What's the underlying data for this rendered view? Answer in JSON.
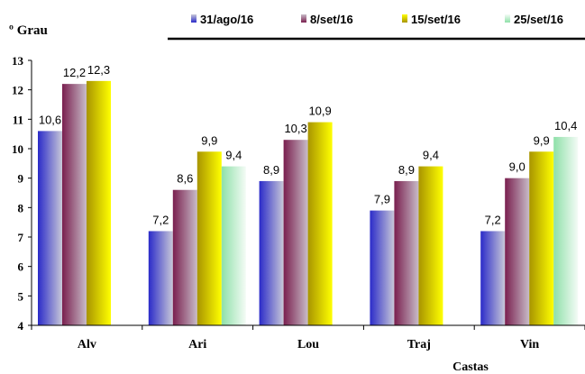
{
  "chart_data": {
    "type": "bar",
    "ylabel": "º Grau",
    "xlabel": "Castas",
    "ylim": [
      4,
      13
    ],
    "yticks": [
      4,
      5,
      6,
      7,
      8,
      9,
      10,
      11,
      12,
      13
    ],
    "categories": [
      "Alv",
      "Ari",
      "Lou",
      "Traj",
      "Vin"
    ],
    "legend_position": "top-right",
    "grid": false,
    "series": [
      {
        "name": "31/ago/16",
        "color_dark": "#2b2bc9",
        "color_light": "#c8c8d8",
        "values": [
          10.6,
          7.2,
          8.9,
          7.9,
          7.2
        ],
        "labels": [
          "10,6",
          "7,2",
          "8,9",
          "7,9",
          "7,2"
        ]
      },
      {
        "name": "8/set/16",
        "color_dark": "#7a1f4f",
        "color_light": "#c8bcc8",
        "values": [
          12.2,
          8.6,
          10.3,
          8.9,
          9.0
        ],
        "labels": [
          "12,2",
          "8,6",
          "10,3",
          "8,9",
          "9,0"
        ]
      },
      {
        "name": "15/set/16",
        "color_dark": "#a89400",
        "color_light": "#ffff00",
        "values": [
          12.3,
          9.9,
          10.9,
          9.4,
          9.9
        ],
        "labels": [
          "12,3",
          "9,9",
          "10,9",
          "9,4",
          "9,9"
        ]
      },
      {
        "name": "25/set/16",
        "color_dark": "#8ee0a8",
        "color_light": "#f4fbf6",
        "values": [
          null,
          9.4,
          null,
          null,
          10.4
        ],
        "labels": [
          null,
          "9,4",
          null,
          null,
          "10,4"
        ]
      }
    ]
  }
}
